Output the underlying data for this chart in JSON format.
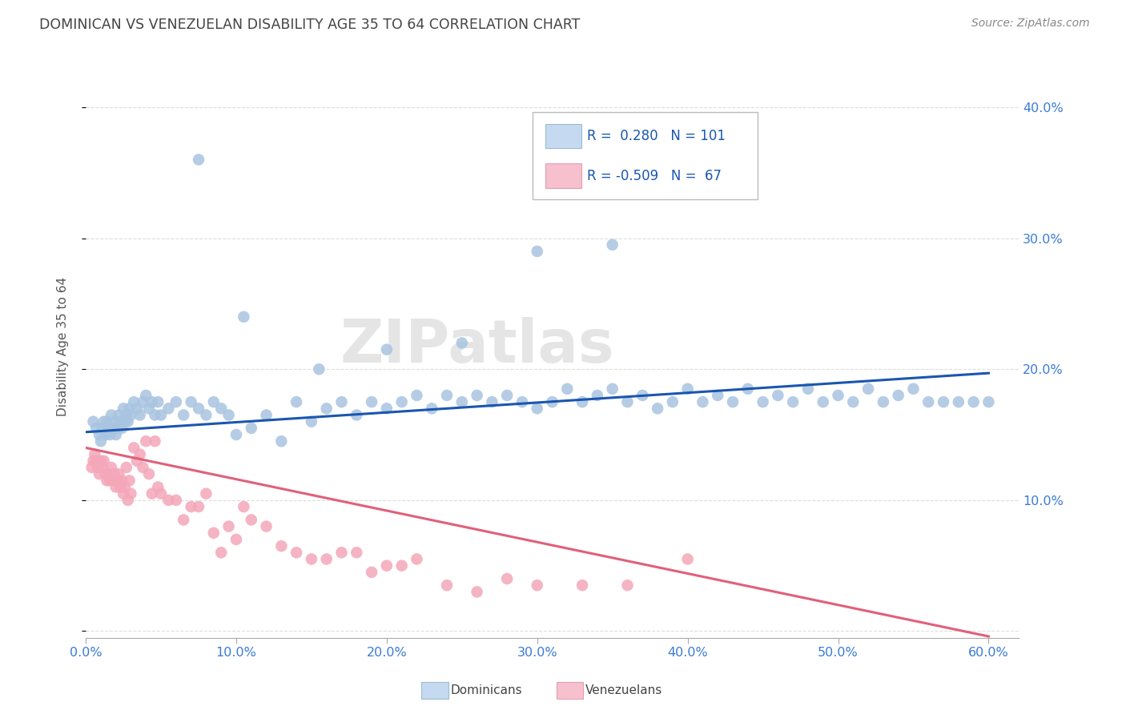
{
  "title": "DOMINICAN VS VENEZUELAN DISABILITY AGE 35 TO 64 CORRELATION CHART",
  "source": "Source: ZipAtlas.com",
  "ylabel": "Disability Age 35 to 64",
  "xlim": [
    0.0,
    0.62
  ],
  "ylim": [
    -0.005,
    0.44
  ],
  "xtick_positions": [
    0.0,
    0.1,
    0.2,
    0.3,
    0.4,
    0.5,
    0.6
  ],
  "xticklabels": [
    "0.0%",
    "10.0%",
    "20.0%",
    "30.0%",
    "40.0%",
    "50.0%",
    "60.0%"
  ],
  "ytick_positions": [
    0.0,
    0.1,
    0.2,
    0.3,
    0.4
  ],
  "yticklabels": [
    "",
    "10.0%",
    "20.0%",
    "30.0%",
    "40.0%"
  ],
  "dominican_color": "#a8c4e0",
  "venezuelan_color": "#f4a7b9",
  "dominican_line_color": "#1a56b0",
  "venezuelan_line_color": "#e0607a",
  "r_dominican": 0.28,
  "n_dominican": 101,
  "r_venezuelan": -0.509,
  "n_venezuelan": 67,
  "legend_box_color_dom": "#c5daf0",
  "legend_box_color_ven": "#f7c0ce",
  "watermark": "ZIPatlas",
  "dominican_x": [
    0.005,
    0.007,
    0.009,
    0.01,
    0.011,
    0.012,
    0.013,
    0.014,
    0.015,
    0.016,
    0.017,
    0.018,
    0.019,
    0.02,
    0.021,
    0.022,
    0.023,
    0.024,
    0.025,
    0.026,
    0.027,
    0.028,
    0.029,
    0.03,
    0.032,
    0.034,
    0.036,
    0.038,
    0.04,
    0.042,
    0.044,
    0.046,
    0.048,
    0.05,
    0.055,
    0.06,
    0.065,
    0.07,
    0.075,
    0.08,
    0.085,
    0.09,
    0.095,
    0.1,
    0.11,
    0.12,
    0.13,
    0.14,
    0.15,
    0.16,
    0.17,
    0.18,
    0.19,
    0.2,
    0.21,
    0.22,
    0.23,
    0.24,
    0.25,
    0.26,
    0.27,
    0.28,
    0.29,
    0.3,
    0.31,
    0.32,
    0.33,
    0.34,
    0.35,
    0.36,
    0.37,
    0.38,
    0.39,
    0.4,
    0.41,
    0.42,
    0.43,
    0.44,
    0.45,
    0.46,
    0.47,
    0.48,
    0.49,
    0.5,
    0.51,
    0.52,
    0.53,
    0.54,
    0.55,
    0.56,
    0.57,
    0.58,
    0.59,
    0.6,
    0.2,
    0.25,
    0.3,
    0.35,
    0.155,
    0.105,
    0.075
  ],
  "dominican_y": [
    0.16,
    0.155,
    0.15,
    0.145,
    0.155,
    0.16,
    0.15,
    0.16,
    0.155,
    0.15,
    0.165,
    0.155,
    0.16,
    0.15,
    0.155,
    0.165,
    0.16,
    0.155,
    0.17,
    0.16,
    0.165,
    0.16,
    0.17,
    0.165,
    0.175,
    0.17,
    0.165,
    0.175,
    0.18,
    0.17,
    0.175,
    0.165,
    0.175,
    0.165,
    0.17,
    0.175,
    0.165,
    0.175,
    0.17,
    0.165,
    0.175,
    0.17,
    0.165,
    0.15,
    0.155,
    0.165,
    0.145,
    0.175,
    0.16,
    0.17,
    0.175,
    0.165,
    0.175,
    0.17,
    0.175,
    0.18,
    0.17,
    0.18,
    0.175,
    0.18,
    0.175,
    0.18,
    0.175,
    0.17,
    0.175,
    0.185,
    0.175,
    0.18,
    0.185,
    0.175,
    0.18,
    0.17,
    0.175,
    0.185,
    0.175,
    0.18,
    0.175,
    0.185,
    0.175,
    0.18,
    0.175,
    0.185,
    0.175,
    0.18,
    0.175,
    0.185,
    0.175,
    0.18,
    0.185,
    0.175,
    0.175,
    0.175,
    0.175,
    0.175,
    0.215,
    0.22,
    0.29,
    0.295,
    0.2,
    0.24,
    0.36
  ],
  "venezuelan_x": [
    0.004,
    0.005,
    0.006,
    0.007,
    0.008,
    0.009,
    0.01,
    0.011,
    0.012,
    0.013,
    0.014,
    0.015,
    0.016,
    0.017,
    0.018,
    0.019,
    0.02,
    0.021,
    0.022,
    0.023,
    0.024,
    0.025,
    0.026,
    0.027,
    0.028,
    0.029,
    0.03,
    0.032,
    0.034,
    0.036,
    0.038,
    0.04,
    0.042,
    0.044,
    0.046,
    0.048,
    0.05,
    0.055,
    0.06,
    0.065,
    0.07,
    0.075,
    0.08,
    0.085,
    0.09,
    0.095,
    0.1,
    0.105,
    0.11,
    0.12,
    0.13,
    0.14,
    0.15,
    0.16,
    0.17,
    0.18,
    0.19,
    0.2,
    0.21,
    0.22,
    0.24,
    0.26,
    0.28,
    0.3,
    0.33,
    0.36,
    0.4
  ],
  "venezuelan_y": [
    0.125,
    0.13,
    0.135,
    0.13,
    0.125,
    0.12,
    0.13,
    0.125,
    0.13,
    0.12,
    0.115,
    0.12,
    0.115,
    0.125,
    0.115,
    0.12,
    0.11,
    0.115,
    0.12,
    0.11,
    0.115,
    0.105,
    0.11,
    0.125,
    0.1,
    0.115,
    0.105,
    0.14,
    0.13,
    0.135,
    0.125,
    0.145,
    0.12,
    0.105,
    0.145,
    0.11,
    0.105,
    0.1,
    0.1,
    0.085,
    0.095,
    0.095,
    0.105,
    0.075,
    0.06,
    0.08,
    0.07,
    0.095,
    0.085,
    0.08,
    0.065,
    0.06,
    0.055,
    0.055,
    0.06,
    0.06,
    0.045,
    0.05,
    0.05,
    0.055,
    0.035,
    0.03,
    0.04,
    0.035,
    0.035,
    0.035,
    0.055
  ]
}
